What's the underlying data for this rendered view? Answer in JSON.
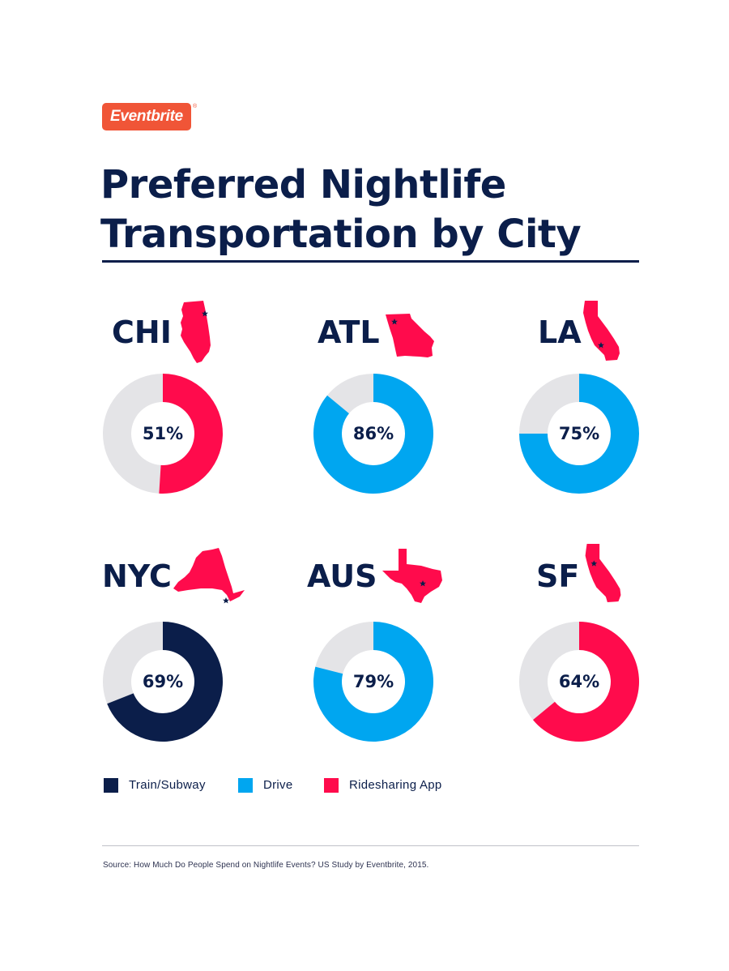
{
  "brand": {
    "logo_text": "Eventbrite",
    "registered_mark": "®",
    "logo_color": "#f05537"
  },
  "header": {
    "title_line1": "Preferred Nightlife",
    "title_line2": "Transportation by City"
  },
  "colors": {
    "navy": "#0b1e4a",
    "blue": "#00a6f0",
    "red": "#ff0b4c",
    "gray": "#e4e4e7",
    "text": "#0b1e4a",
    "source_text": "#2d3250"
  },
  "chart_data": {
    "type": "pie",
    "title": "Preferred Nightlife Transportation by City",
    "legend": [
      {
        "key": "train",
        "label": "Train/Subway",
        "color": "#0b1e4a"
      },
      {
        "key": "drive",
        "label": "Drive",
        "color": "#00a6f0"
      },
      {
        "key": "ride",
        "label": "Ridesharing App",
        "color": "#ff0b4c"
      }
    ],
    "cities": [
      {
        "code": "CHI",
        "state_icon": "illinois-state-icon",
        "category": "Ridesharing App",
        "value": 51,
        "label": "51%",
        "color": "#ff0b4c"
      },
      {
        "code": "ATL",
        "state_icon": "georgia-state-icon",
        "category": "Drive",
        "value": 86,
        "label": "86%",
        "color": "#00a6f0"
      },
      {
        "code": "LA",
        "state_icon": "california-state-icon",
        "category": "Drive",
        "value": 75,
        "label": "75%",
        "color": "#00a6f0"
      },
      {
        "code": "NYC",
        "state_icon": "new-york-state-icon",
        "category": "Train/Subway",
        "value": 69,
        "label": "69%",
        "color": "#0b1e4a"
      },
      {
        "code": "AUS",
        "state_icon": "texas-state-icon",
        "category": "Drive",
        "value": 79,
        "label": "79%",
        "color": "#00a6f0"
      },
      {
        "code": "SF",
        "state_icon": "california-state-icon",
        "category": "Ridesharing App",
        "value": 64,
        "label": "64%",
        "color": "#ff0b4c"
      }
    ]
  },
  "footer": {
    "source": "Source: How Much Do People Spend on Nightlife Events? US Study by Eventbrite, 2015."
  }
}
